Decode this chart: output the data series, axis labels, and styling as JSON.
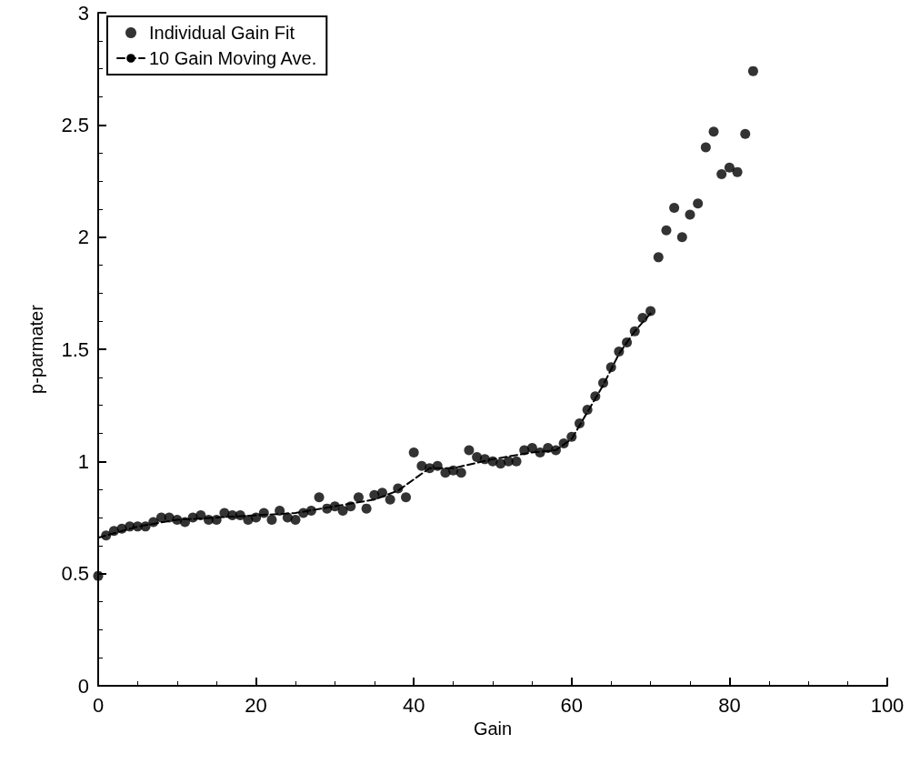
{
  "chart_data": {
    "type": "scatter",
    "xlabel": "Gain",
    "ylabel": "p-parmater",
    "xlim": [
      0,
      100
    ],
    "xticks": [
      0,
      20,
      40,
      60,
      80,
      100
    ],
    "ylim": [
      0,
      3
    ],
    "yticks": [
      0,
      0.5,
      1,
      1.5,
      2,
      2.5,
      3
    ],
    "grid": false,
    "legend": "top left",
    "series": [
      {
        "name": "Individual Gain Fit",
        "type": "scatter",
        "marker": "circle",
        "color": "#000000",
        "x": [
          0,
          1,
          2,
          3,
          4,
          5,
          6,
          7,
          8,
          9,
          10,
          11,
          12,
          13,
          14,
          15,
          16,
          17,
          18,
          19,
          20,
          21,
          22,
          23,
          24,
          25,
          26,
          27,
          28,
          29,
          30,
          31,
          32,
          33,
          34,
          35,
          36,
          37,
          38,
          39,
          40,
          41,
          42,
          43,
          44,
          45,
          46,
          47,
          48,
          49,
          50,
          51,
          52,
          53,
          54,
          55,
          56,
          57,
          58,
          59,
          60,
          61,
          62,
          63,
          64,
          65,
          66,
          67,
          68,
          69,
          70,
          71,
          72,
          73,
          74,
          75,
          76,
          77,
          78,
          79,
          80,
          81,
          82,
          83
        ],
        "values": [
          0.49,
          0.67,
          0.69,
          0.7,
          0.71,
          0.71,
          0.71,
          0.73,
          0.75,
          0.75,
          0.74,
          0.73,
          0.75,
          0.76,
          0.74,
          0.74,
          0.77,
          0.76,
          0.76,
          0.74,
          0.75,
          0.77,
          0.74,
          0.78,
          0.75,
          0.74,
          0.77,
          0.78,
          0.84,
          0.79,
          0.8,
          0.78,
          0.8,
          0.84,
          0.79,
          0.85,
          0.86,
          0.83,
          0.88,
          0.84,
          1.04,
          0.98,
          0.97,
          0.98,
          0.95,
          0.96,
          0.95,
          1.05,
          1.02,
          1.01,
          1.0,
          0.99,
          1.0,
          1.0,
          1.05,
          1.06,
          1.04,
          1.06,
          1.05,
          1.08,
          1.11,
          1.17,
          1.23,
          1.29,
          1.35,
          1.42,
          1.49,
          1.53,
          1.58,
          1.64,
          1.67,
          1.91,
          2.03,
          2.13,
          2.0,
          2.1,
          2.15,
          2.4,
          2.47,
          2.28,
          2.31,
          2.29,
          2.46,
          2.74
        ]
      },
      {
        "name": "10 Gain Moving Ave.",
        "type": "line",
        "marker": "none",
        "line_style": "dashed",
        "color": "#000000",
        "x": [
          0,
          5,
          10,
          15,
          20,
          25,
          30,
          35,
          38,
          42,
          45,
          50,
          55,
          58,
          60,
          62,
          64,
          66,
          68,
          70
        ],
        "values": [
          0.66,
          0.71,
          0.74,
          0.75,
          0.76,
          0.77,
          0.8,
          0.83,
          0.87,
          0.97,
          0.97,
          1.01,
          1.04,
          1.05,
          1.1,
          1.22,
          1.34,
          1.48,
          1.58,
          1.66
        ]
      }
    ]
  }
}
